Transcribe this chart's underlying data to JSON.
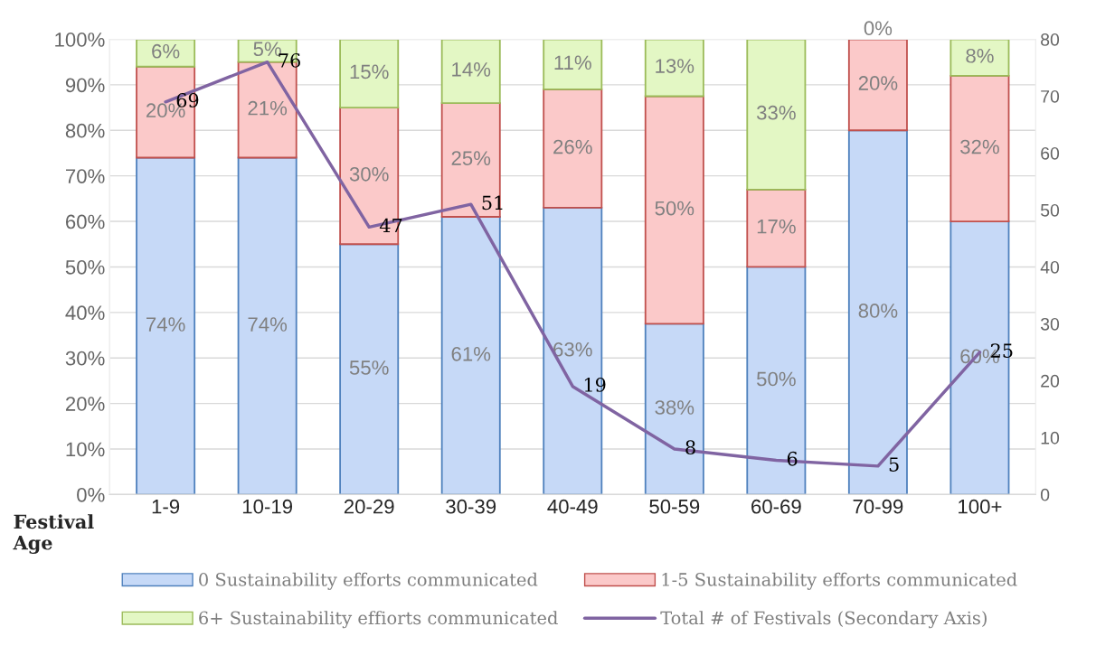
{
  "chart_data": {
    "type": "bar",
    "stacked": true,
    "xlabel": "Festival Age",
    "categories": [
      "1-9",
      "10-19",
      "20-29",
      "30-39",
      "40-49",
      "50-59",
      "60-69",
      "70-99",
      "100+"
    ],
    "series": [
      {
        "name": "0 Sustainability efforts communicated",
        "color": "#c6d9f7",
        "values": [
          74,
          74,
          55,
          61,
          63,
          37.5,
          50,
          80,
          60
        ],
        "value_labels": [
          "74%",
          "74%",
          "55%",
          "61%",
          "63%",
          "38%",
          "50%",
          "80%",
          "60%"
        ]
      },
      {
        "name": "1-5 Sustainability efforts communicated",
        "color": "#fbc9c9",
        "values": [
          20,
          21,
          30,
          25,
          26,
          50,
          17,
          20,
          32
        ],
        "value_labels": [
          "20%",
          "21%",
          "30%",
          "25%",
          "26%",
          "50%",
          "17%",
          "20%",
          "32%"
        ]
      },
      {
        "name": "6+ Sustainability effiorts communicated",
        "color": "#e3f7c4",
        "values": [
          6,
          5,
          15,
          14,
          11,
          12.5,
          33,
          0,
          8
        ],
        "value_labels": [
          "6%",
          "5%",
          "15%",
          "14%",
          "11%",
          "13%",
          "33%",
          "0%",
          "8%"
        ]
      },
      {
        "name": "Total # of Festivals (Secondary Axis)",
        "type": "line",
        "axis": "y2",
        "color": "#8064a2",
        "values": [
          69,
          76,
          47,
          51,
          19,
          8,
          6,
          5,
          25
        ],
        "value_labels": [
          "69",
          "76",
          "47",
          "51",
          "19",
          "8",
          "6",
          "5",
          "25"
        ]
      }
    ],
    "ylim": [
      0,
      100
    ],
    "yticks": [
      {
        "value": 0,
        "label": "0%"
      },
      {
        "value": 10,
        "label": "10%"
      },
      {
        "value": 20,
        "label": "20%"
      },
      {
        "value": 30,
        "label": "30%"
      },
      {
        "value": 40,
        "label": "40%"
      },
      {
        "value": 50,
        "label": "50%"
      },
      {
        "value": 60,
        "label": "60%"
      },
      {
        "value": 70,
        "label": "70%"
      },
      {
        "value": 80,
        "label": "80%"
      },
      {
        "value": 90,
        "label": "90%"
      },
      {
        "value": 100,
        "label": "100%"
      }
    ],
    "y2lim": [
      0,
      80
    ],
    "y2ticks": [
      0,
      10,
      20,
      30,
      40,
      50,
      60,
      70,
      80
    ],
    "grid": "y",
    "legend": "bottom"
  }
}
